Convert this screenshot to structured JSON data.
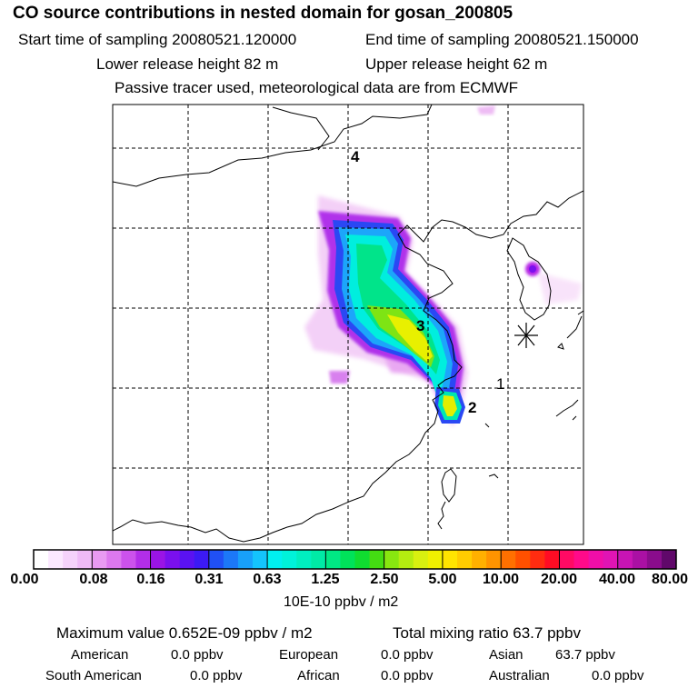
{
  "title": "CO  source contributions in nested domain for gosan_200805",
  "start_label": "Start time of sampling 20080521.120000",
  "end_label": "End time of sampling 20080521.150000",
  "lower_label": "Lower release height   82 m",
  "upper_label": "Upper release height   62 m",
  "tracer_label": "Passive tracer used, meteorological data are from ECMWF",
  "map_markers": [
    {
      "label": "1"
    },
    {
      "label": "2"
    },
    {
      "label": "3"
    },
    {
      "label": "4"
    }
  ],
  "colorbar": {
    "ticks": [
      "0.00",
      "0.08",
      "0.16",
      "0.31",
      "0.63",
      "1.25",
      "2.50",
      "5.00",
      "10.00",
      "20.00",
      "40.00",
      "80.00"
    ],
    "colors": [
      "#ffffff",
      "#fbe8ff",
      "#f5d2fb",
      "#efbaf7",
      "#e89af2",
      "#dc78ee",
      "#cc52ec",
      "#b22ee8",
      "#9a14e6",
      "#7a10ee",
      "#5a12f2",
      "#3c1af5",
      "#2050f5",
      "#1c78f8",
      "#18a0fa",
      "#14c4fc",
      "#00f0f0",
      "#00f2da",
      "#00eec0",
      "#00eaa6",
      "#00e884",
      "#00e25a",
      "#10dc30",
      "#44dc12",
      "#88e610",
      "#b4ec10",
      "#d8f010",
      "#f0f000",
      "#ffe400",
      "#ffcc00",
      "#ffb000",
      "#ff9400",
      "#ff7000",
      "#ff5000",
      "#ff2c10",
      "#ff0c24",
      "#ff0a64",
      "#ff0a8a",
      "#f00ea8",
      "#e014b4",
      "#c814b4",
      "#aa10a4",
      "#8a0c8c",
      "#60086a"
    ],
    "units": "10E-10 ppbv / m2"
  },
  "summary": {
    "max_label": "Maximum value  0.652E-09 ppbv / m2",
    "total_label": "Total mixing ratio       63.7 ppbv",
    "sources": [
      {
        "name": "American",
        "value": "0.0 ppbv"
      },
      {
        "name": "European",
        "value": "0.0 ppbv"
      },
      {
        "name": "Asian",
        "value": "63.7 ppbv"
      },
      {
        "name": "South American",
        "value": "0.0 ppbv"
      },
      {
        "name": "African",
        "value": "0.0 ppbv"
      },
      {
        "name": "Australian",
        "value": "0.0 ppbv"
      }
    ]
  }
}
